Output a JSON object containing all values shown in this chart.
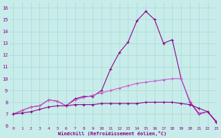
{
  "xlabel": "Windchill (Refroidissement éolien,°C)",
  "xlim": [
    -0.5,
    23
  ],
  "ylim": [
    6,
    16.5
  ],
  "yticks": [
    6,
    7,
    8,
    9,
    10,
    11,
    12,
    13,
    14,
    15,
    16
  ],
  "xticks": [
    0,
    1,
    2,
    3,
    4,
    5,
    6,
    7,
    8,
    9,
    10,
    11,
    12,
    13,
    14,
    15,
    16,
    17,
    18,
    19,
    20,
    21,
    22,
    23
  ],
  "background_color": "#c8ecea",
  "grid_color": "#a8d8d4",
  "line_color_dark": "#880088",
  "line_color_mid": "#aa22aa",
  "line_color_light": "#cc55cc",
  "series": {
    "line1_big": [
      7.0,
      7.3,
      7.6,
      7.7,
      8.2,
      8.1,
      7.7,
      8.3,
      8.5,
      8.5,
      9.0,
      10.8,
      12.2,
      13.1,
      14.9,
      15.7,
      15.0,
      13.0,
      13.3,
      10.0,
      8.0,
      7.0,
      7.2,
      6.3
    ],
    "line2_mid": [
      7.0,
      7.3,
      7.6,
      7.7,
      8.2,
      8.1,
      7.7,
      8.2,
      8.4,
      8.6,
      8.8,
      9.0,
      9.2,
      9.4,
      9.6,
      9.7,
      9.8,
      9.9,
      10.0,
      10.0,
      8.1,
      7.1,
      7.2,
      6.4
    ],
    "line3_flat": [
      7.0,
      7.1,
      7.2,
      7.4,
      7.6,
      7.7,
      7.7,
      7.8,
      7.8,
      7.8,
      7.9,
      7.9,
      7.9,
      7.9,
      7.9,
      8.0,
      8.0,
      8.0,
      8.0,
      7.9,
      7.8,
      7.5,
      7.2,
      6.3
    ]
  }
}
